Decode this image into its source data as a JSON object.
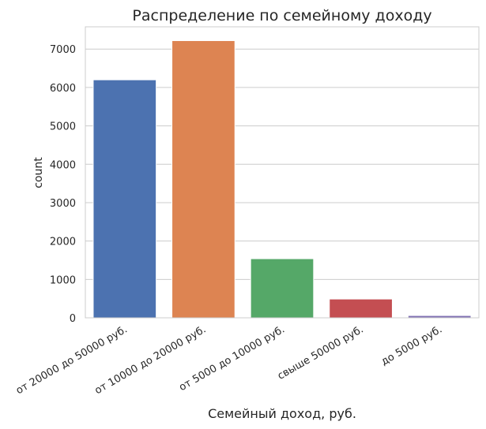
{
  "chart_data": {
    "type": "bar",
    "title": "Распределение по семейному доходу",
    "xlabel": "Семейный доход, руб.",
    "ylabel": "count",
    "categories": [
      "от 20000 до 50000 руб.",
      "от 10000 до 20000 руб.",
      "от 5000 до 10000 руб.",
      "свыше 50000 руб.",
      "до 5000 руб."
    ],
    "values": [
      6200,
      7220,
      1540,
      490,
      60
    ],
    "colors": [
      "#4c72b0",
      "#dd8452",
      "#55a868",
      "#c44e52",
      "#8172b3"
    ],
    "ylim": [
      0,
      7580
    ],
    "yticks": [
      0,
      1000,
      2000,
      3000,
      4000,
      5000,
      6000,
      7000
    ],
    "grid": true,
    "legend": "none"
  }
}
